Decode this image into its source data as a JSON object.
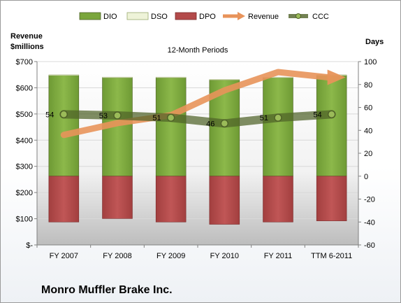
{
  "chart_data": {
    "type": "bar",
    "title": "12-Month Periods",
    "company": "Monro Muffler Brake Inc.",
    "left_axis_title": [
      "Revenue",
      "$millions"
    ],
    "right_axis_title": "Days",
    "categories": [
      "FY 2007",
      "FY 2008",
      "FY 2009",
      "FY 2010",
      "FY 2011",
      "TTM 6-2011"
    ],
    "left_ticks": [
      "$-",
      "$100",
      "$200",
      "$300",
      "$400",
      "$500",
      "$600",
      "$700"
    ],
    "right_ticks": [
      "-60",
      "-40",
      "-20",
      "0",
      "20",
      "40",
      "60",
      "80",
      "100"
    ],
    "left_ylim": [
      0,
      700
    ],
    "right_ylim": [
      -60,
      100
    ],
    "legend": [
      "DIO",
      "DSO",
      "DPO",
      "Revenue",
      "CCC"
    ],
    "legend_position": "top",
    "series": [
      {
        "name": "DIO",
        "axis": "right",
        "kind": "stacked-bar",
        "color": "#7aa63c",
        "values": [
          88,
          86,
          86,
          84,
          86,
          88
        ]
      },
      {
        "name": "DSO",
        "axis": "right",
        "kind": "stacked-bar",
        "color": "#eef3d8",
        "values": [
          0.5,
          0.5,
          0.5,
          0.5,
          0.5,
          0.5
        ]
      },
      {
        "name": "DPO",
        "axis": "right",
        "kind": "negative-bar",
        "color": "#b34a4a",
        "values": [
          -40,
          -37,
          -40,
          -42,
          -40,
          -39
        ]
      },
      {
        "name": "Revenue",
        "axis": "left",
        "kind": "line-arrow",
        "color": "#e8935a",
        "values": [
          420,
          465,
          495,
          590,
          660,
          640
        ]
      },
      {
        "name": "CCC",
        "axis": "right",
        "kind": "line",
        "color": "#4f6228",
        "values": [
          54,
          53,
          51,
          46,
          51,
          54
        ]
      }
    ],
    "ccc_labels": [
      "54",
      "53",
      "51",
      "46",
      "51",
      "54"
    ],
    "grid": true
  }
}
